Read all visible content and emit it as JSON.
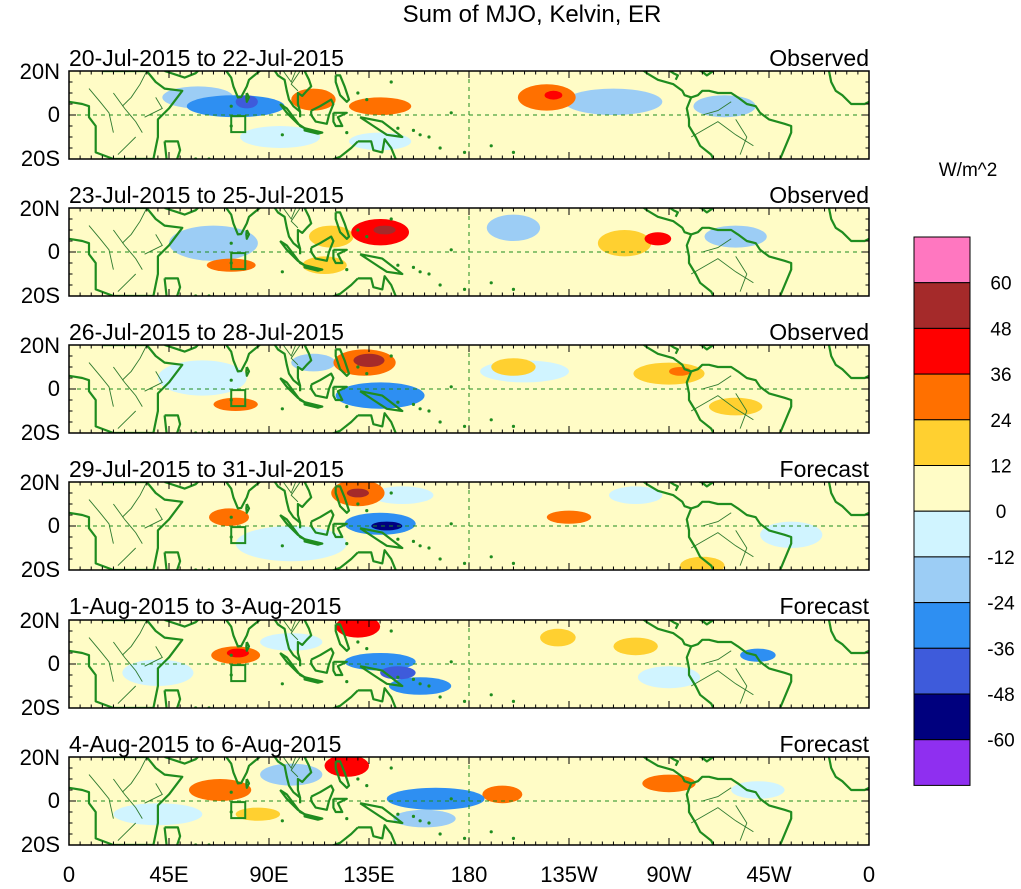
{
  "chart_data": {
    "type": "heatmap",
    "title": "Sum of MJO, Kelvin, ER",
    "units": "W/m^2",
    "x_ticks": [
      "0",
      "45E",
      "90E",
      "135E",
      "180",
      "135W",
      "90W",
      "45W",
      "0"
    ],
    "y_ticks": [
      "20N",
      "0",
      "20S"
    ],
    "x_range_deg_east": [
      0,
      360
    ],
    "y_range_deg": [
      -20,
      20
    ],
    "colorbar": {
      "labels": [
        "60",
        "48",
        "36",
        "24",
        "12",
        "0",
        "-12",
        "-24",
        "-36",
        "-48",
        "-60"
      ],
      "colors": [
        "#ff77c0",
        "#a52a2a",
        "#ff0000",
        "#ff7000",
        "#ffd030",
        "#fffcc6",
        "#d0f4ff",
        "#9ccdf5",
        "#2e8ff2",
        "#3e5bdb",
        "#00007e",
        "#8f2ff0"
      ]
    },
    "panels": [
      {
        "period": "20-Jul-2015 to 22-Jul-2015",
        "status": "Observed",
        "features": [
          {
            "lon": 75,
            "lat": 4,
            "dlon": 22,
            "dlat": 5,
            "value": -28
          },
          {
            "lon": 58,
            "lat": 8,
            "dlon": 16,
            "dlat": 5,
            "value": -16
          },
          {
            "lon": 80,
            "lat": 6,
            "dlon": 5,
            "dlat": 3,
            "value": -40
          },
          {
            "lon": 110,
            "lat": 7,
            "dlon": 10,
            "dlat": 5,
            "value": 24
          },
          {
            "lon": 140,
            "lat": 4,
            "dlon": 14,
            "dlat": 4,
            "value": 26
          },
          {
            "lon": 215,
            "lat": 8,
            "dlon": 13,
            "dlat": 6,
            "value": 30
          },
          {
            "lon": 218,
            "lat": 9,
            "dlon": 4,
            "dlat": 2,
            "value": 40
          },
          {
            "lon": 172,
            "lat": 8,
            "dlon": 12,
            "dlat": 5,
            "value": 7
          },
          {
            "lon": 245,
            "lat": 6,
            "dlon": 22,
            "dlat": 6,
            "value": -13
          },
          {
            "lon": 295,
            "lat": 4,
            "dlon": 14,
            "dlat": 5,
            "value": -14
          },
          {
            "lon": 95,
            "lat": -10,
            "dlon": 18,
            "dlat": 5,
            "value": -10
          },
          {
            "lon": 140,
            "lat": -12,
            "dlon": 14,
            "dlat": 4,
            "value": -12
          },
          {
            "lon": 40,
            "lat": -8,
            "dlon": 20,
            "dlat": 6,
            "value": 7
          },
          {
            "lon": 320,
            "lat": 2,
            "dlon": 14,
            "dlat": 8,
            "value": 6
          }
        ]
      },
      {
        "period": "23-Jul-2015 to 25-Jul-2015",
        "status": "Observed",
        "features": [
          {
            "lon": 65,
            "lat": 4,
            "dlon": 20,
            "dlat": 8,
            "value": -24
          },
          {
            "lon": 118,
            "lat": 7,
            "dlon": 10,
            "dlat": 5,
            "value": 22
          },
          {
            "lon": 140,
            "lat": 9,
            "dlon": 13,
            "dlat": 6,
            "value": 36
          },
          {
            "lon": 142,
            "lat": 10,
            "dlon": 5,
            "dlat": 2,
            "value": 50
          },
          {
            "lon": 73,
            "lat": -6,
            "dlon": 11,
            "dlat": 3,
            "value": 28
          },
          {
            "lon": 115,
            "lat": -6,
            "dlon": 10,
            "dlat": 4,
            "value": 18
          },
          {
            "lon": 200,
            "lat": 11,
            "dlon": 12,
            "dlat": 6,
            "value": -14
          },
          {
            "lon": 250,
            "lat": 4,
            "dlon": 12,
            "dlat": 6,
            "value": 22
          },
          {
            "lon": 265,
            "lat": 6,
            "dlon": 6,
            "dlat": 3,
            "value": 38
          },
          {
            "lon": 300,
            "lat": 7,
            "dlon": 14,
            "dlat": 5,
            "value": -14
          },
          {
            "lon": 230,
            "lat": 12,
            "dlon": 16,
            "dlat": 5,
            "value": 8
          },
          {
            "lon": 180,
            "lat": -8,
            "dlon": 25,
            "dlat": 6,
            "value": 6
          },
          {
            "lon": 320,
            "lat": -12,
            "dlon": 20,
            "dlat": 5,
            "value": 6
          }
        ]
      },
      {
        "period": "26-Jul-2015 to 28-Jul-2015",
        "status": "Observed",
        "features": [
          {
            "lon": 133,
            "lat": 12,
            "dlon": 14,
            "dlat": 6,
            "value": 34
          },
          {
            "lon": 135,
            "lat": 13,
            "dlon": 7,
            "dlat": 3,
            "value": 50
          },
          {
            "lon": 140,
            "lat": -3,
            "dlon": 20,
            "dlat": 6,
            "value": -30
          },
          {
            "lon": 110,
            "lat": 12,
            "dlon": 10,
            "dlat": 4,
            "value": -20
          },
          {
            "lon": 75,
            "lat": -7,
            "dlon": 10,
            "dlat": 3,
            "value": 26
          },
          {
            "lon": 60,
            "lat": 5,
            "dlon": 20,
            "dlat": 8,
            "value": -12
          },
          {
            "lon": 270,
            "lat": 7,
            "dlon": 16,
            "dlat": 5,
            "value": 22
          },
          {
            "lon": 275,
            "lat": 8,
            "dlon": 5,
            "dlat": 2,
            "value": 34
          },
          {
            "lon": 205,
            "lat": 8,
            "dlon": 20,
            "dlat": 5,
            "value": -10
          },
          {
            "lon": 200,
            "lat": 10,
            "dlon": 10,
            "dlat": 4,
            "value": 12
          },
          {
            "lon": 250,
            "lat": -4,
            "dlon": 25,
            "dlat": 5,
            "value": 6
          },
          {
            "lon": 300,
            "lat": -8,
            "dlon": 12,
            "dlat": 4,
            "value": 14
          }
        ]
      },
      {
        "period": "29-Jul-2015 to 31-Jul-2015",
        "status": "Forecast",
        "features": [
          {
            "lon": 130,
            "lat": 15,
            "dlon": 12,
            "dlat": 6,
            "value": 34
          },
          {
            "lon": 130,
            "lat": 15,
            "dlon": 5,
            "dlat": 2,
            "value": 50
          },
          {
            "lon": 140,
            "lat": 1,
            "dlon": 16,
            "dlat": 5,
            "value": -36
          },
          {
            "lon": 143,
            "lat": 0,
            "dlon": 7,
            "dlat": 2,
            "value": -58
          },
          {
            "lon": 72,
            "lat": 4,
            "dlon": 9,
            "dlat": 4,
            "value": 28
          },
          {
            "lon": 100,
            "lat": -8,
            "dlon": 25,
            "dlat": 8,
            "value": -12
          },
          {
            "lon": 150,
            "lat": 14,
            "dlon": 14,
            "dlat": 4,
            "value": -12
          },
          {
            "lon": 225,
            "lat": 4,
            "dlon": 10,
            "dlat": 3,
            "value": 26
          },
          {
            "lon": 190,
            "lat": 10,
            "dlon": 20,
            "dlat": 5,
            "value": 8
          },
          {
            "lon": 255,
            "lat": 14,
            "dlon": 12,
            "dlat": 4,
            "value": -10
          },
          {
            "lon": 325,
            "lat": -4,
            "dlon": 14,
            "dlat": 6,
            "value": -10
          },
          {
            "lon": 285,
            "lat": -18,
            "dlon": 10,
            "dlat": 4,
            "value": 20
          }
        ]
      },
      {
        "period": "1-Aug-2015 to 3-Aug-2015",
        "status": "Forecast",
        "features": [
          {
            "lon": 130,
            "lat": 17,
            "dlon": 10,
            "dlat": 5,
            "value": 38
          },
          {
            "lon": 75,
            "lat": 4,
            "dlon": 11,
            "dlat": 4,
            "value": 30
          },
          {
            "lon": 76,
            "lat": 5,
            "dlon": 5,
            "dlat": 2,
            "value": 40
          },
          {
            "lon": 140,
            "lat": 1,
            "dlon": 16,
            "dlat": 4,
            "value": -32
          },
          {
            "lon": 158,
            "lat": -10,
            "dlon": 14,
            "dlat": 4,
            "value": -30
          },
          {
            "lon": 148,
            "lat": -4,
            "dlon": 8,
            "dlat": 3,
            "value": -42
          },
          {
            "lon": 100,
            "lat": 10,
            "dlon": 14,
            "dlat": 4,
            "value": -12
          },
          {
            "lon": 220,
            "lat": 12,
            "dlon": 8,
            "dlat": 4,
            "value": 18
          },
          {
            "lon": 255,
            "lat": 8,
            "dlon": 10,
            "dlat": 4,
            "value": 14
          },
          {
            "lon": 310,
            "lat": 4,
            "dlon": 8,
            "dlat": 3,
            "value": -28
          },
          {
            "lon": 270,
            "lat": -6,
            "dlon": 14,
            "dlat": 5,
            "value": -12
          },
          {
            "lon": 40,
            "lat": -4,
            "dlon": 16,
            "dlat": 6,
            "value": -10
          }
        ]
      },
      {
        "period": "4-Aug-2015 to 6-Aug-2015",
        "status": "Forecast",
        "features": [
          {
            "lon": 125,
            "lat": 16,
            "dlon": 10,
            "dlat": 5,
            "value": 36
          },
          {
            "lon": 68,
            "lat": 5,
            "dlon": 14,
            "dlat": 5,
            "value": 26
          },
          {
            "lon": 165,
            "lat": 1,
            "dlon": 22,
            "dlat": 5,
            "value": -28
          },
          {
            "lon": 160,
            "lat": -8,
            "dlon": 14,
            "dlat": 4,
            "value": -22
          },
          {
            "lon": 100,
            "lat": 12,
            "dlon": 14,
            "dlat": 5,
            "value": -14
          },
          {
            "lon": 195,
            "lat": 3,
            "dlon": 9,
            "dlat": 4,
            "value": 26
          },
          {
            "lon": 270,
            "lat": 8,
            "dlon": 12,
            "dlat": 4,
            "value": 26
          },
          {
            "lon": 85,
            "lat": -6,
            "dlon": 10,
            "dlat": 3,
            "value": 14
          },
          {
            "lon": 230,
            "lat": 5,
            "dlon": 16,
            "dlat": 6,
            "value": 8
          },
          {
            "lon": 310,
            "lat": 5,
            "dlon": 12,
            "dlat": 4,
            "value": -12
          },
          {
            "lon": 40,
            "lat": -6,
            "dlon": 20,
            "dlat": 5,
            "value": -8
          }
        ]
      }
    ]
  }
}
